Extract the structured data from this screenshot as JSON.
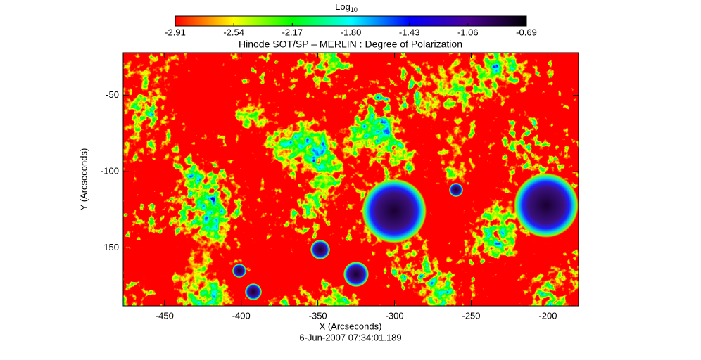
{
  "chart_data": {
    "type": "image",
    "title": "Hinode SOT/SP – MERLIN : Degree of Polarization",
    "x_label": "X (Arcseconds)",
    "y_label": "Y (Arcseconds)",
    "date": "6-Jun-2007 07:34:01.189",
    "xlim": [
      -477,
      -180
    ],
    "ylim": [
      -188,
      -22
    ],
    "xticks": [
      -450,
      -400,
      -350,
      -300,
      -250,
      -200
    ],
    "yticks": [
      -50,
      -100,
      -150
    ],
    "colorbar": {
      "label": "Log",
      "label_subscript": "10",
      "lim": [
        -2.91,
        -0.69
      ],
      "ticks": [
        -2.91,
        -2.54,
        -2.17,
        -1.8,
        -1.43,
        -1.06,
        -0.69
      ],
      "colormap": [
        "#ff0000",
        "#ffff00",
        "#00ff00",
        "#00ffff",
        "#0000ff",
        "#4b0096",
        "#000000"
      ]
    }
  }
}
